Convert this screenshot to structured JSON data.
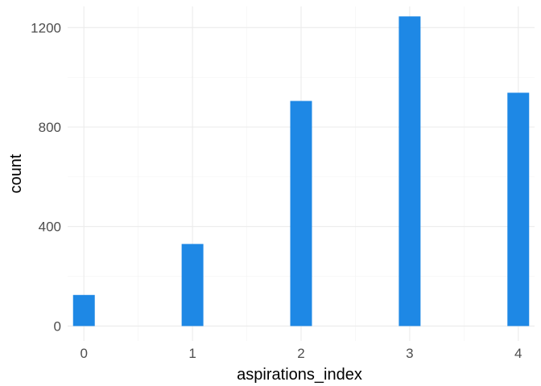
{
  "chart_data": {
    "type": "bar",
    "categories": [
      "0",
      "1",
      "2",
      "3",
      "4"
    ],
    "x": [
      0,
      1,
      2,
      3,
      4
    ],
    "values": [
      125,
      330,
      905,
      1245,
      938
    ],
    "xlabel": "aspirations_index",
    "ylabel": "count",
    "xlim": [
      -0.15,
      4.15
    ],
    "ylim": [
      -60,
      1285
    ],
    "yticks": [
      0,
      400,
      800,
      1200
    ],
    "xticks": [
      0,
      1,
      2,
      3,
      4
    ],
    "grid": true,
    "bar_color": "#1e88e5"
  }
}
